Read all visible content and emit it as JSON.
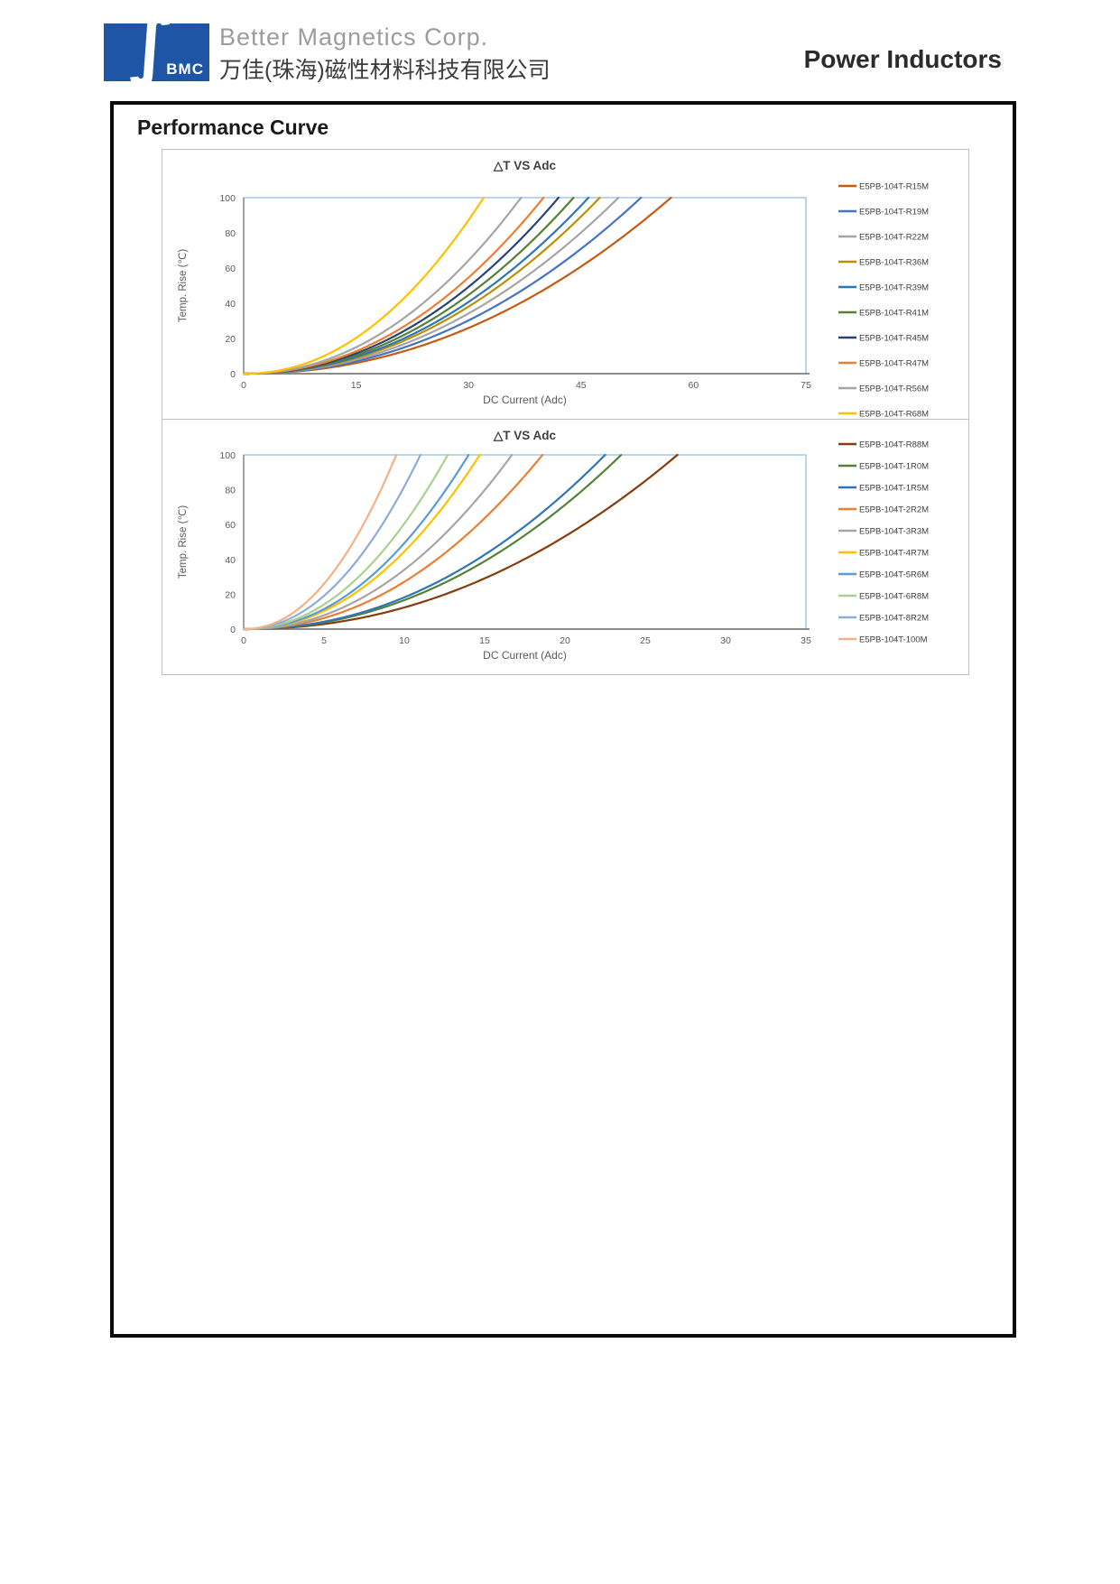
{
  "header": {
    "logo_text": "BMC",
    "logo_glyph": "∫",
    "logo_color": "#1E55A5",
    "company_en": "Better Magnetics Corp.",
    "company_zh": "万佳(珠海)磁性材料科技有限公司",
    "product_title": "Power Inductors"
  },
  "section_title": "Performance Curve",
  "colors": {
    "plot_border": "#9DC3E6",
    "axis_line": "#8C8C8C",
    "tick_text": "#595959",
    "title_text": "#3F3F3F",
    "legend_text": "#404040",
    "page_border": "#0A0A0A"
  },
  "chart_data": [
    {
      "type": "line",
      "title": "△T VS Adc",
      "xlabel": "DC Current (Adc)",
      "ylabel": "Temp. Rise (℃)",
      "xlim": [
        0,
        75
      ],
      "xticks": [
        0,
        15,
        30,
        45,
        60,
        75
      ],
      "ylim": [
        0,
        100
      ],
      "yticks": [
        0,
        20,
        40,
        60,
        80,
        100
      ],
      "grid": false,
      "legend_position": "right",
      "curve_model": "dT = 100 * (I / i_at_dT100)^2.1",
      "series": [
        {
          "name": "E5PB-104T-R15M",
          "color": "#C55A11",
          "i_at_dT100": 57
        },
        {
          "name": "E5PB-104T-R19M",
          "color": "#4472C4",
          "i_at_dT100": 53
        },
        {
          "name": "E5PB-104T-R22M",
          "color": "#A5A5A5",
          "i_at_dT100": 50
        },
        {
          "name": "E5PB-104T-R36M",
          "color": "#BF8F00",
          "i_at_dT100": 47.5
        },
        {
          "name": "E5PB-104T-R39M",
          "color": "#2E75B6",
          "i_at_dT100": 46
        },
        {
          "name": "E5PB-104T-R41M",
          "color": "#548235",
          "i_at_dT100": 44
        },
        {
          "name": "E5PB-104T-R45M",
          "color": "#264478",
          "i_at_dT100": 42
        },
        {
          "name": "E5PB-104T-R47M",
          "color": "#ED7D31",
          "i_at_dT100": 40
        },
        {
          "name": "E5PB-104T-R56M",
          "color": "#A5A5A5",
          "i_at_dT100": 37
        },
        {
          "name": "E5PB-104T-R68M",
          "color": "#FFC000",
          "i_at_dT100": 32
        }
      ]
    },
    {
      "type": "line",
      "title": "△T VS Adc",
      "xlabel": "DC Current (Adc)",
      "ylabel": "Temp. Rise (℃)",
      "xlim": [
        0,
        35
      ],
      "xticks": [
        0,
        5,
        10,
        15,
        20,
        25,
        30,
        35
      ],
      "ylim": [
        0,
        100
      ],
      "yticks": [
        0,
        20,
        40,
        60,
        80,
        100
      ],
      "grid": false,
      "legend_position": "right",
      "curve_model": "dT = 100 * (I / i_at_dT100)^2.1",
      "series": [
        {
          "name": "E5PB-104T-R88M",
          "color": "#843C0C",
          "i_at_dT100": 27
        },
        {
          "name": "E5PB-104T-1R0M",
          "color": "#548235",
          "i_at_dT100": 23.5
        },
        {
          "name": "E5PB-104T-1R5M",
          "color": "#2E75B6",
          "i_at_dT100": 22.5
        },
        {
          "name": "E5PB-104T-2R2M",
          "color": "#ED7D31",
          "i_at_dT100": 18.6
        },
        {
          "name": "E5PB-104T-3R3M",
          "color": "#A5A5A5",
          "i_at_dT100": 16.7
        },
        {
          "name": "E5PB-104T-4R7M",
          "color": "#FFC000",
          "i_at_dT100": 14.7
        },
        {
          "name": "E5PB-104T-5R6M",
          "color": "#5B9BD5",
          "i_at_dT100": 14
        },
        {
          "name": "E5PB-104T-6R8M",
          "color": "#A9D18E",
          "i_at_dT100": 12.7
        },
        {
          "name": "E5PB-104T-8R2M",
          "color": "#8FAADC",
          "i_at_dT100": 11
        },
        {
          "name": "E5PB-104T-100M",
          "color": "#F4B183",
          "i_at_dT100": 9.5
        }
      ]
    }
  ]
}
